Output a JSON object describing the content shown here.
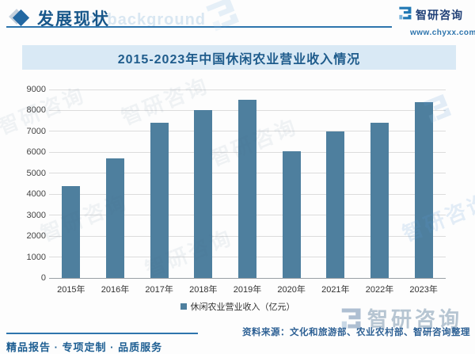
{
  "header": {
    "section_title": "发展现状",
    "watermark": "ent background",
    "brand": {
      "name": "智研咨询",
      "url": "www.chyxx.com"
    }
  },
  "chart": {
    "title": "2015-2023年中国休闲农业营业收入情况",
    "legend": "休闲农业营业收入（亿元）"
  },
  "chart_data": {
    "type": "bar",
    "title": "2015-2023年中国休闲农业营业收入情况",
    "categories": [
      "2015年",
      "2016年",
      "2017年",
      "2018年",
      "2019年",
      "2020年",
      "2021年",
      "2022年",
      "2023年"
    ],
    "values": [
      4400,
      5700,
      7400,
      8000,
      8500,
      6050,
      7000,
      7400,
      8400
    ],
    "series_name": "休闲农业营业收入（亿元）",
    "xlabel": "",
    "ylabel": "",
    "ylim": [
      0,
      9000
    ],
    "ytick_step": 1000,
    "grid": true,
    "legend_position": "bottom",
    "bar_color": "#4e7f9e"
  },
  "footer": {
    "source": "资料来源：文化和旅游部、农业农村部、智研咨询整理",
    "tagline": "精品报告 · 专项定制 · 品质服务",
    "watermark_brand": "智研咨询"
  },
  "colors": {
    "bar": "#4e7f9e",
    "banner_bg": "#d9e9f5",
    "accent_blue": "#2e75ad",
    "dark_blue": "#18578a"
  }
}
